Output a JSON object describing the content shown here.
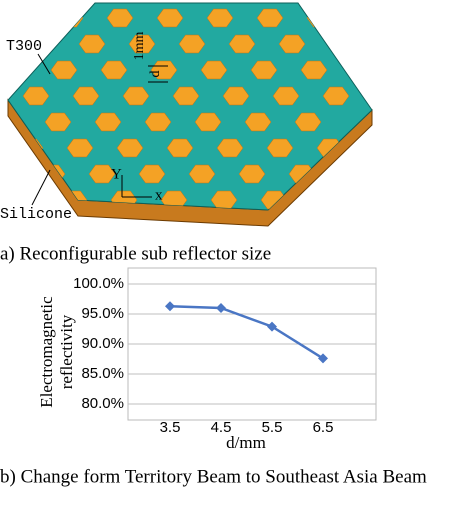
{
  "figure_a": {
    "labels": {
      "material_top": "T300",
      "gap": "1mm",
      "size": "d",
      "axis_y": "Y",
      "axis_x": "x",
      "material_bottom": "Silicone"
    },
    "caption": "a) Reconfigurable sub reflector size"
  },
  "chart_data": {
    "type": "line",
    "ylabel_lines": [
      "Electromagnetic",
      "reflectivity"
    ],
    "xlabel": "d/mm",
    "categories": [
      "3.5",
      "4.5",
      "5.5",
      "6.5"
    ],
    "values": [
      96.3,
      96.0,
      92.9,
      87.6
    ],
    "color": "#4a76c4",
    "ylim": [
      80,
      100
    ],
    "yticks": [
      {
        "value": 80,
        "label": "80.0%"
      },
      {
        "value": 85,
        "label": "85.0%"
      },
      {
        "value": 90,
        "label": "90.0%"
      },
      {
        "value": 95,
        "label": "95.0%"
      },
      {
        "value": 100,
        "label": "100.0%"
      }
    ],
    "grid": true
  },
  "caption_b": "b) Change form Territory Beam to Southeast Asia Beam"
}
